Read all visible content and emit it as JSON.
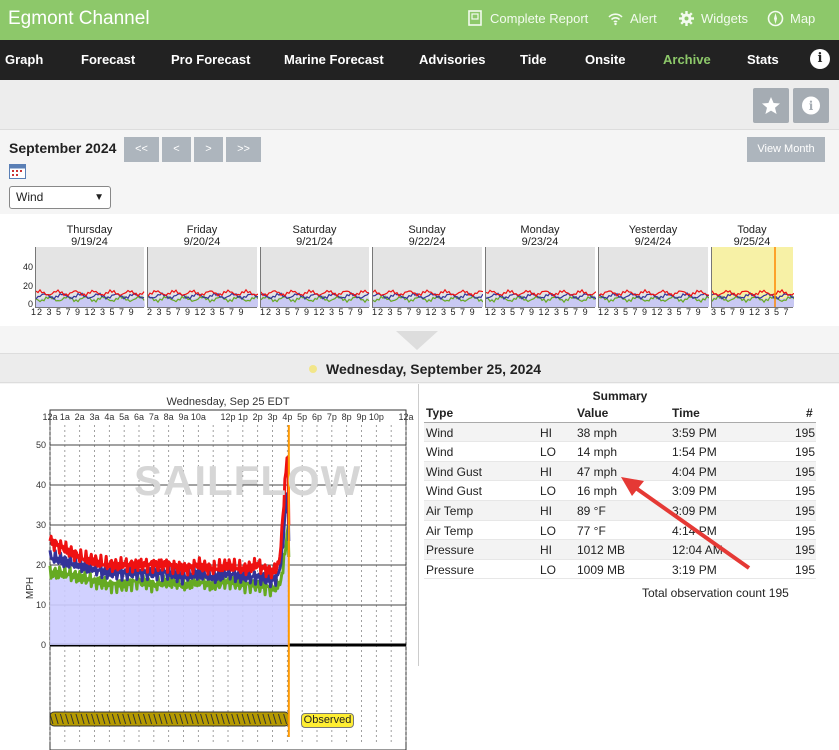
{
  "app": {
    "title": "Egmont Channel",
    "actions": [
      {
        "label": "Complete Report",
        "icon": "report-icon"
      },
      {
        "label": "Alert",
        "icon": "wifi-icon"
      },
      {
        "label": "Widgets",
        "icon": "gear-icon"
      },
      {
        "label": "Map",
        "icon": "compass-icon"
      }
    ]
  },
  "nav": {
    "tabs": [
      "Graph",
      "Forecast",
      "Pro Forecast",
      "Marine Forecast",
      "Advisories",
      "Tide",
      "Onsite",
      "Archive",
      "Stats"
    ],
    "active": "Archive"
  },
  "controls": {
    "month": "September 2024",
    "nav_buttons": [
      "<<",
      "<",
      ">",
      ">>"
    ],
    "view_month": "View Month",
    "measure": "Wind"
  },
  "strip": {
    "days": [
      {
        "name": "Thursday",
        "date": "9/19/24",
        "ticks": "12 3 5 7 9 12 3 5 7 9"
      },
      {
        "name": "Friday",
        "date": "9/20/24",
        "ticks": "2 3 5 7 9 12 3 5 7 9"
      },
      {
        "name": "Saturday",
        "date": "9/21/24",
        "ticks": "12 3 5 7 9 12 3 5 7 9"
      },
      {
        "name": "Sunday",
        "date": "9/22/24",
        "ticks": "12 3 5 7 9 12 3 5 7 9"
      },
      {
        "name": "Monday",
        "date": "9/23/24",
        "ticks": "12 3 5 7 9 12 3 5 7 9"
      },
      {
        "name": "Yesterday",
        "date": "9/24/24",
        "ticks": "12 3 5 7 9 12 3 5 7 9"
      },
      {
        "name": "Today",
        "date": "9/25/24",
        "ticks": "3 5 7 9 12 3 5 7"
      }
    ],
    "y_ticks": [
      "40",
      "20",
      "0"
    ]
  },
  "selected_date": "Wednesday, September 25, 2024",
  "chart_data": {
    "type": "line",
    "title": "Wednesday, Sep 25 EDT",
    "ylabel": "MPH",
    "ylim": [
      -10,
      55
    ],
    "x_ticks": [
      "12a",
      "1a",
      "2a",
      "3a",
      "4a",
      "5a",
      "6a",
      "7a",
      "8a",
      "9a",
      "10a",
      "",
      "12p",
      "1p",
      "2p",
      "3p",
      "4p",
      "5p",
      "6p",
      "7p",
      "8p",
      "9p",
      "10p",
      "",
      "12a"
    ],
    "y_ticks": [
      "50",
      "40",
      "30",
      "20",
      "10",
      "0"
    ],
    "x_hours": [
      0,
      1,
      2,
      3,
      4,
      5,
      6,
      7,
      8,
      9,
      10,
      11,
      12,
      13,
      14,
      15,
      15.5,
      15.9,
      16.05,
      16.1
    ],
    "series": [
      {
        "color": "#ee1111",
        "values": [
          26,
          24,
          22,
          21,
          20,
          20,
          20,
          20,
          20,
          19,
          20,
          19,
          20,
          19,
          20,
          18,
          21,
          44,
          47,
          30
        ]
      },
      {
        "color": "#333399",
        "values": [
          22,
          21,
          20,
          19,
          18,
          18,
          18,
          18,
          18,
          17,
          18,
          17,
          18,
          17,
          17,
          16,
          18,
          34,
          38,
          26
        ]
      },
      {
        "color": "#66aa22",
        "values": [
          18,
          18,
          17,
          16,
          15,
          15,
          16,
          15,
          16,
          15,
          16,
          15,
          16,
          15,
          15,
          14,
          15,
          24,
          30,
          22
        ]
      }
    ],
    "observed_label": "Observed",
    "watermark": "SAILFLOW"
  },
  "summary": {
    "title": "Summary",
    "headers": [
      "Type",
      "",
      "Value",
      "Time",
      "#"
    ],
    "rows": [
      [
        "Wind",
        "HI",
        "38 mph",
        "3:59 PM",
        "195"
      ],
      [
        "Wind",
        "LO",
        "14 mph",
        "1:54 PM",
        "195"
      ],
      [
        "Wind Gust",
        "HI",
        "47 mph",
        "4:04 PM",
        "195"
      ],
      [
        "Wind Gust",
        "LO",
        "16 mph",
        "3:09 PM",
        "195"
      ],
      [
        "Air Temp",
        "HI",
        "89 °F",
        "3:09 PM",
        "195"
      ],
      [
        "Air Temp",
        "LO",
        "77 °F",
        "4:14 PM",
        "195"
      ],
      [
        "Pressure",
        "HI",
        "1012 MB",
        "12:04 AM",
        "195"
      ],
      [
        "Pressure",
        "LO",
        "1009 MB",
        "3:19 PM",
        "195"
      ]
    ],
    "total_label": "Total observation count",
    "total_value": "195"
  }
}
